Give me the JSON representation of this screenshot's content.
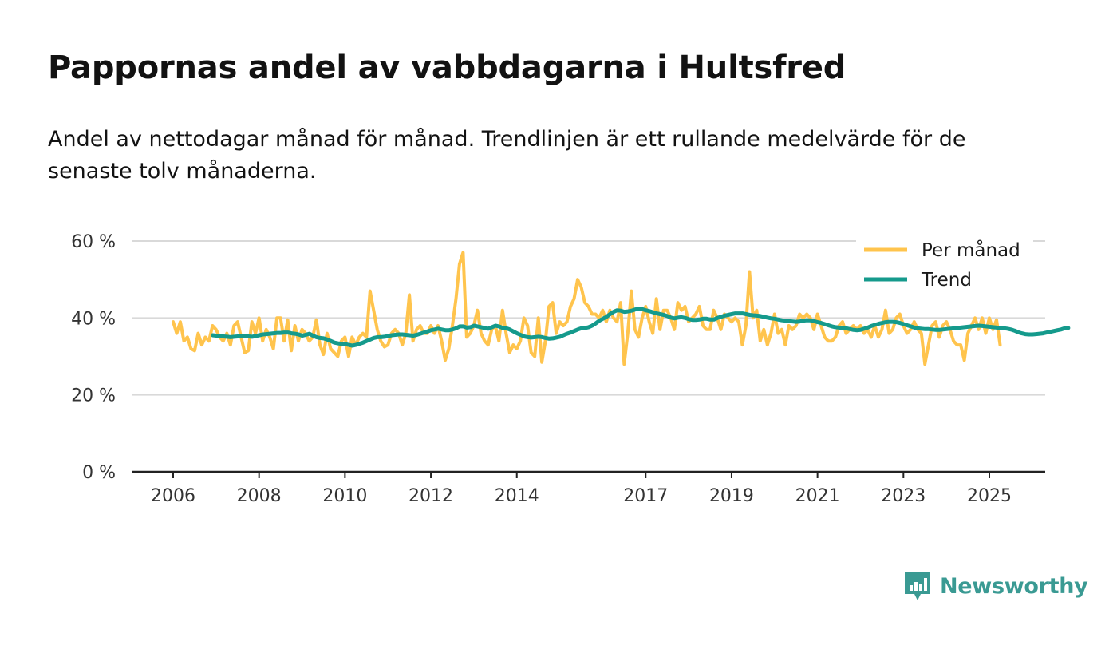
{
  "title": "Pappornas andel av vabbdagarna i Hultsfred",
  "subtitle": "Andel av nettodagar månad för månad. Trendlinjen är ett rullande medelvärde för de senaste tolv månaderna.",
  "brand": {
    "name": "Newsworthy",
    "icon": "newsworthy-logo-icon",
    "color": "#3a9a93"
  },
  "chart_data": {
    "type": "line",
    "title": "Pappornas andel av vabbdagarna i Hultsfred",
    "xlabel": "",
    "ylabel": "",
    "x_range": [
      2006,
      2025.5
    ],
    "ylim": [
      0,
      60
    ],
    "y_ticks": [
      0,
      20,
      40,
      60
    ],
    "y_tick_labels": [
      "0 %",
      "20 %",
      "40 %",
      "60 %"
    ],
    "x_ticks": [
      2006,
      2008,
      2010,
      2012,
      2014,
      2017,
      2019,
      2021,
      2023,
      2025
    ],
    "x_tick_labels": [
      "2006",
      "2008",
      "2010",
      "2012",
      "2014",
      "2017",
      "2019",
      "2021",
      "2023",
      "2025"
    ],
    "grid": true,
    "legend_position": "top-right",
    "series": [
      {
        "name": "Per månad",
        "color": "#ffc44d",
        "start": 2006.0,
        "step_months": 1,
        "values": [
          39,
          36,
          39,
          34,
          35,
          32,
          31.5,
          36,
          33,
          35,
          34,
          38,
          37,
          35,
          34,
          36,
          33,
          38,
          39,
          35,
          31,
          31.5,
          39,
          36,
          40,
          34,
          37,
          35,
          32,
          40,
          40,
          34,
          39.5,
          31.5,
          38,
          34,
          37,
          36,
          34,
          35,
          39.5,
          33,
          30.5,
          36,
          32,
          31,
          30,
          34,
          35,
          30,
          35,
          33,
          35,
          36,
          35,
          47,
          42,
          37,
          34,
          32.5,
          33,
          36,
          37,
          36,
          33,
          36,
          46,
          34,
          37,
          38,
          36,
          36,
          38,
          36,
          38,
          34,
          29,
          32,
          38,
          45,
          54,
          57,
          35,
          36,
          38,
          42,
          36,
          34,
          33,
          37,
          38,
          34,
          42,
          36,
          31,
          33,
          32,
          34,
          40,
          38,
          31,
          30,
          40,
          28.5,
          34,
          43,
          44,
          36,
          39,
          38,
          39,
          43,
          45,
          50,
          48,
          44,
          43,
          41,
          41,
          40,
          42,
          39,
          42,
          40,
          39,
          44,
          28,
          36,
          47,
          37,
          35,
          40,
          43,
          39,
          36,
          45,
          37,
          42,
          42,
          40,
          37,
          44,
          42,
          43,
          39,
          40,
          41,
          43,
          38,
          37,
          37,
          42,
          40,
          37,
          41,
          40,
          39,
          40,
          39,
          33,
          38,
          52,
          40,
          42,
          34,
          37,
          33,
          36,
          41,
          36,
          37,
          33,
          38,
          37,
          38,
          41,
          40,
          41,
          40,
          37,
          41,
          38,
          35,
          34,
          34,
          35,
          38,
          39,
          36,
          37,
          38,
          37,
          38,
          36,
          37,
          35,
          38,
          35,
          37,
          42,
          36,
          37,
          40,
          41,
          38,
          36,
          37,
          39,
          37,
          36,
          28,
          33,
          38,
          39,
          35,
          38,
          39,
          37,
          34,
          33,
          33,
          29,
          36,
          38,
          40,
          37,
          40,
          36,
          40,
          37,
          39.5,
          33
        ]
      },
      {
        "name": "Trend",
        "color": "#159a8c",
        "start": 2006.92,
        "step_months": 1,
        "values": [
          35.5,
          35.4,
          35.3,
          35.2,
          35.1,
          35.0,
          35.1,
          35.2,
          35.3,
          35.3,
          35.2,
          35.1,
          35.3,
          35.5,
          35.7,
          35.8,
          35.9,
          36.0,
          36.1,
          36.1,
          36.2,
          36.2,
          36.0,
          35.9,
          35.7,
          35.4,
          35.6,
          35.9,
          35.4,
          35.0,
          34.8,
          34.7,
          34.4,
          34.0,
          33.6,
          33.4,
          33.3,
          33.2,
          33.0,
          32.8,
          33.0,
          33.3,
          33.6,
          34.0,
          34.4,
          34.8,
          35.0,
          35.0,
          35.1,
          35.3,
          35.5,
          35.6,
          35.7,
          35.7,
          35.6,
          35.5,
          35.4,
          35.6,
          35.9,
          36.2,
          36.5,
          36.8,
          37.0,
          37.2,
          37.0,
          36.8,
          36.8,
          37.0,
          37.3,
          37.8,
          37.8,
          37.5,
          37.6,
          38.0,
          37.8,
          37.6,
          37.4,
          37.2,
          37.6,
          38.0,
          37.8,
          37.4,
          37.3,
          37.0,
          36.5,
          36.0,
          35.6,
          35.2,
          35.0,
          34.9,
          35.0,
          35.1,
          35.0,
          34.8,
          34.6,
          34.7,
          34.9,
          35.1,
          35.5,
          35.9,
          36.2,
          36.6,
          37.0,
          37.3,
          37.4,
          37.6,
          38.0,
          38.6,
          39.3,
          39.8,
          40.3,
          41.0,
          41.6,
          42.0,
          41.9,
          41.6,
          41.7,
          41.9,
          42.2,
          42.4,
          42.3,
          42.0,
          41.8,
          41.5,
          41.2,
          41.0,
          40.8,
          40.5,
          40.1,
          39.9,
          40.1,
          40.2,
          40.0,
          39.7,
          39.5,
          39.5,
          39.6,
          39.8,
          39.8,
          39.6,
          39.6,
          40.0,
          40.3,
          40.6,
          40.8,
          41.0,
          41.2,
          41.2,
          41.2,
          41.0,
          40.8,
          40.7,
          40.6,
          40.5,
          40.3,
          40.1,
          39.9,
          39.8,
          39.6,
          39.4,
          39.3,
          39.2,
          39.1,
          39.0,
          39.1,
          39.3,
          39.4,
          39.4,
          39.2,
          38.9,
          38.7,
          38.4,
          38.1,
          37.8,
          37.6,
          37.5,
          37.4,
          37.3,
          37.1,
          36.9,
          36.8,
          36.9,
          37.2,
          37.5,
          37.9,
          38.2,
          38.5,
          38.7,
          38.9,
          39.0,
          39.0,
          38.9,
          38.7,
          38.4,
          38.1,
          37.8,
          37.5,
          37.3,
          37.2,
          37.1,
          37.1,
          37.0,
          36.9,
          36.9,
          37.0,
          37.1,
          37.2,
          37.3,
          37.4,
          37.5,
          37.6,
          37.7,
          37.8,
          37.9,
          38.0,
          37.9,
          37.8,
          37.7,
          37.6,
          37.5,
          37.4,
          37.3,
          37.2,
          37.0,
          36.7,
          36.3,
          36.0,
          35.8,
          35.7,
          35.7,
          35.8,
          35.9,
          36.0,
          36.2,
          36.4,
          36.6,
          36.8,
          37.0,
          37.3,
          37.4
        ]
      }
    ]
  }
}
